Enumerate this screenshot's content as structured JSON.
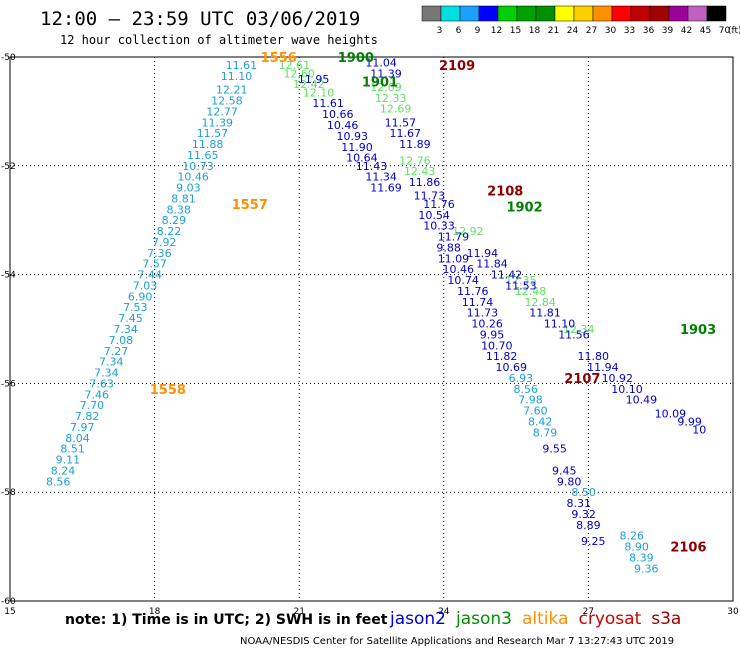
{
  "header": {
    "title": "12:00 – 23:59 UTC 03/06/2019",
    "subtitle": "12 hour collection of altimeter wave heights"
  },
  "colorbar": {
    "colors": [
      "#777777",
      "#00e0e0",
      "#1ca0ff",
      "#0000ff",
      "#00d000",
      "#00a000",
      "#009000",
      "#ffff00",
      "#ffd000",
      "#ff9000",
      "#ff0000",
      "#c00000",
      "#a00000",
      "#9b009b",
      "#c060c0",
      "#000000"
    ],
    "labels": [
      "3",
      "6",
      "9",
      "12",
      "15",
      "18",
      "21",
      "24",
      "27",
      "30",
      "33",
      "36",
      "39",
      "42",
      "45",
      "70"
    ],
    "unit": "(ft)"
  },
  "footer": {
    "note": "note: 1) Time is in UTC; 2) SWH is in feet",
    "satellites": [
      {
        "name": "jason2",
        "color": "#0000cc"
      },
      {
        "name": "jason3",
        "color": "#009000"
      },
      {
        "name": "altika",
        "color": "#ff9000"
      },
      {
        "name": "cryosat",
        "color": "#cc0000"
      },
      {
        "name": "s3a",
        "color": "#a00000"
      }
    ],
    "credit": "NOAA/NESDIS Center for Satellite Applications and Research    Mar  7 13:27:43 UTC 2019"
  },
  "chart_data": {
    "type": "scatter",
    "xlim": [
      15,
      30
    ],
    "ylim": [
      -60,
      -50
    ],
    "xticks": [
      "15",
      "18",
      "21",
      "24",
      "27",
      "30"
    ],
    "yticks": [
      "-50",
      "-52",
      "-54",
      "-56",
      "-58",
      "-60"
    ],
    "grid": true,
    "pass_labels": [
      {
        "text": "1556",
        "x": 20.2,
        "y": -50.0,
        "color": "#ff9000"
      },
      {
        "text": "1900",
        "x": 21.8,
        "y": -50.0,
        "color": "#008000"
      },
      {
        "text": "2109",
        "x": 23.9,
        "y": -50.15,
        "color": "#8b0000"
      },
      {
        "text": "1901",
        "x": 22.3,
        "y": -50.45,
        "color": "#008000"
      },
      {
        "text": "1557",
        "x": 19.6,
        "y": -52.7,
        "color": "#ff9000"
      },
      {
        "text": "2108",
        "x": 24.9,
        "y": -52.45,
        "color": "#8b0000"
      },
      {
        "text": "1902",
        "x": 25.3,
        "y": -52.75,
        "color": "#008000"
      },
      {
        "text": "1903",
        "x": 28.9,
        "y": -55.0,
        "color": "#008000"
      },
      {
        "text": "1558",
        "x": 17.9,
        "y": -56.1,
        "color": "#ff9000"
      },
      {
        "text": "2107",
        "x": 26.5,
        "y": -55.9,
        "color": "#8b0000"
      },
      {
        "text": "2106",
        "x": 28.7,
        "y": -59.0,
        "color": "#8b0000"
      }
    ],
    "series": [
      {
        "color": "#1ca0d8",
        "points": [
          [
            19.8,
            -50.15,
            "11.61"
          ],
          [
            19.7,
            -50.35,
            "11.10"
          ],
          [
            19.6,
            -50.6,
            "12.21"
          ],
          [
            19.5,
            -50.8,
            "12.58"
          ],
          [
            19.4,
            -51.0,
            "12.77"
          ],
          [
            19.3,
            -51.2,
            "11.39"
          ],
          [
            19.2,
            -51.4,
            "11.57"
          ],
          [
            19.1,
            -51.6,
            "11.88"
          ],
          [
            19.0,
            -51.8,
            "11.65"
          ],
          [
            18.9,
            -52.0,
            "10.73"
          ],
          [
            18.8,
            -52.2,
            "10.46"
          ],
          [
            18.7,
            -52.4,
            "9.03"
          ],
          [
            18.6,
            -52.6,
            "8.81"
          ],
          [
            18.5,
            -52.8,
            "8.38"
          ],
          [
            18.4,
            -53.0,
            "8.29"
          ],
          [
            18.3,
            -53.2,
            "8.22"
          ],
          [
            18.2,
            -53.4,
            "7.92"
          ],
          [
            18.1,
            -53.6,
            "7.36"
          ],
          [
            18.0,
            -53.8,
            "7.57"
          ],
          [
            17.9,
            -54.0,
            "7.44"
          ],
          [
            17.8,
            -54.2,
            "7.03"
          ],
          [
            17.7,
            -54.4,
            "6.90"
          ],
          [
            17.6,
            -54.6,
            "7.53"
          ],
          [
            17.5,
            -54.8,
            "7.45"
          ],
          [
            17.4,
            -55.0,
            "7.34"
          ],
          [
            17.3,
            -55.2,
            "7.08"
          ],
          [
            17.2,
            -55.4,
            "7.27"
          ],
          [
            17.1,
            -55.6,
            "7.34"
          ],
          [
            17.0,
            -55.8,
            "7.34"
          ],
          [
            16.9,
            -56.0,
            "7.63"
          ],
          [
            16.8,
            -56.2,
            "7.46"
          ],
          [
            16.7,
            -56.4,
            "7.70"
          ],
          [
            16.6,
            -56.6,
            "7.82"
          ],
          [
            16.5,
            -56.8,
            "7.97"
          ],
          [
            16.4,
            -57.0,
            "8.04"
          ],
          [
            16.3,
            -57.2,
            "8.51"
          ],
          [
            16.2,
            -57.4,
            "9.11"
          ],
          [
            16.1,
            -57.6,
            "8.24"
          ],
          [
            16.0,
            -57.8,
            "8.56"
          ]
        ]
      },
      {
        "color": "#60e060",
        "points": [
          [
            20.9,
            -50.15,
            "12.61"
          ],
          [
            21.0,
            -50.3,
            "12.60"
          ],
          [
            21.2,
            -50.5,
            "12.42"
          ],
          [
            21.4,
            -50.65,
            "12.10"
          ],
          [
            22.8,
            -50.55,
            "12.09"
          ],
          [
            22.9,
            -50.75,
            "12.33"
          ],
          [
            23.0,
            -50.95,
            "12.69"
          ],
          [
            23.4,
            -51.9,
            "12.76"
          ],
          [
            23.5,
            -52.1,
            "12.43"
          ],
          [
            24.5,
            -53.2,
            "12.92"
          ],
          [
            25.6,
            -54.1,
            "12.35"
          ],
          [
            25.8,
            -54.3,
            "12.48"
          ],
          [
            26.0,
            -54.5,
            "12.84"
          ],
          [
            26.8,
            -55.0,
            "12.34"
          ]
        ]
      },
      {
        "color": "#0000cc",
        "points": [
          [
            21.3,
            -50.4,
            "11.95"
          ],
          [
            21.6,
            -50.85,
            "11.61"
          ],
          [
            21.8,
            -51.05,
            "10.66"
          ],
          [
            21.9,
            -51.25,
            "10.46"
          ],
          [
            22.1,
            -51.45,
            "10.93"
          ],
          [
            22.2,
            -51.65,
            "11.90"
          ],
          [
            22.3,
            -51.85,
            "10.64"
          ],
          [
            22.5,
            -52.0,
            "11.43"
          ],
          [
            22.7,
            -52.2,
            "11.34"
          ],
          [
            22.8,
            -52.4,
            "11.69"
          ],
          [
            22.7,
            -50.1,
            "11.04"
          ],
          [
            22.8,
            -50.3,
            "11.39"
          ],
          [
            23.1,
            -51.2,
            "11.57"
          ],
          [
            23.2,
            -51.4,
            "11.67"
          ],
          [
            23.4,
            -51.6,
            "11.89"
          ],
          [
            23.6,
            -52.3,
            "11.86"
          ],
          [
            23.7,
            -52.55,
            "11.73"
          ],
          [
            23.9,
            -52.7,
            "11.76"
          ],
          [
            23.8,
            -52.9,
            "10.54"
          ],
          [
            23.9,
            -53.1,
            "10.33"
          ],
          [
            24.2,
            -53.3,
            "11.79"
          ],
          [
            24.1,
            -53.5,
            "9.88"
          ],
          [
            24.2,
            -53.7,
            "11.09"
          ],
          [
            24.3,
            -53.9,
            "10.46"
          ],
          [
            24.4,
            -54.1,
            "10.74"
          ],
          [
            24.6,
            -54.3,
            "11.76"
          ],
          [
            24.7,
            -54.5,
            "11.74"
          ],
          [
            24.8,
            -54.7,
            "11.73"
          ],
          [
            24.9,
            -54.9,
            "10.26"
          ],
          [
            25.0,
            -55.1,
            "9.95"
          ],
          [
            25.1,
            -55.3,
            "10.70"
          ],
          [
            25.2,
            -55.5,
            "11.82"
          ],
          [
            25.4,
            -55.7,
            "10.69"
          ],
          [
            24.8,
            -53.6,
            "11.94"
          ],
          [
            25.0,
            -53.8,
            "11.84"
          ],
          [
            25.3,
            -54.0,
            "11.42"
          ],
          [
            25.6,
            -54.2,
            "11.53"
          ],
          [
            26.1,
            -54.7,
            "11.81"
          ],
          [
            26.4,
            -54.9,
            "11.10"
          ],
          [
            26.7,
            -55.1,
            "11.56"
          ],
          [
            27.1,
            -55.5,
            "11.80"
          ],
          [
            27.3,
            -55.7,
            "11.94"
          ],
          [
            27.6,
            -55.9,
            "10.92"
          ],
          [
            27.8,
            -56.1,
            "10.10"
          ],
          [
            28.1,
            -56.3,
            "10.49"
          ],
          [
            28.7,
            -56.55,
            "10.09"
          ],
          [
            29.1,
            -56.7,
            "9.99"
          ],
          [
            29.3,
            -56.85,
            "10"
          ]
        ]
      },
      {
        "color": "#1ca0d8",
        "points": [
          [
            25.6,
            -55.9,
            "6.93"
          ],
          [
            25.7,
            -56.1,
            "8.56"
          ],
          [
            25.8,
            -56.3,
            "7.98"
          ],
          [
            25.9,
            -56.5,
            "7.60"
          ],
          [
            26.0,
            -56.7,
            "8.42"
          ],
          [
            26.1,
            -56.9,
            "8.79"
          ],
          [
            26.9,
            -58.0,
            "8.50"
          ],
          [
            27.9,
            -58.8,
            "8.26"
          ],
          [
            28.0,
            -59.0,
            "8.90"
          ],
          [
            28.1,
            -59.2,
            "8.39"
          ],
          [
            28.2,
            -59.4,
            "9.36"
          ]
        ]
      },
      {
        "color": "#0000cc",
        "points": [
          [
            26.3,
            -57.2,
            "9.55"
          ],
          [
            26.5,
            -57.6,
            "9.45"
          ],
          [
            26.6,
            -57.8,
            "9.80"
          ],
          [
            26.8,
            -58.2,
            "8.31"
          ],
          [
            26.9,
            -58.4,
            "9.32"
          ],
          [
            27.0,
            -58.6,
            "8.89"
          ],
          [
            27.1,
            -58.9,
            "9.25"
          ]
        ]
      }
    ]
  }
}
